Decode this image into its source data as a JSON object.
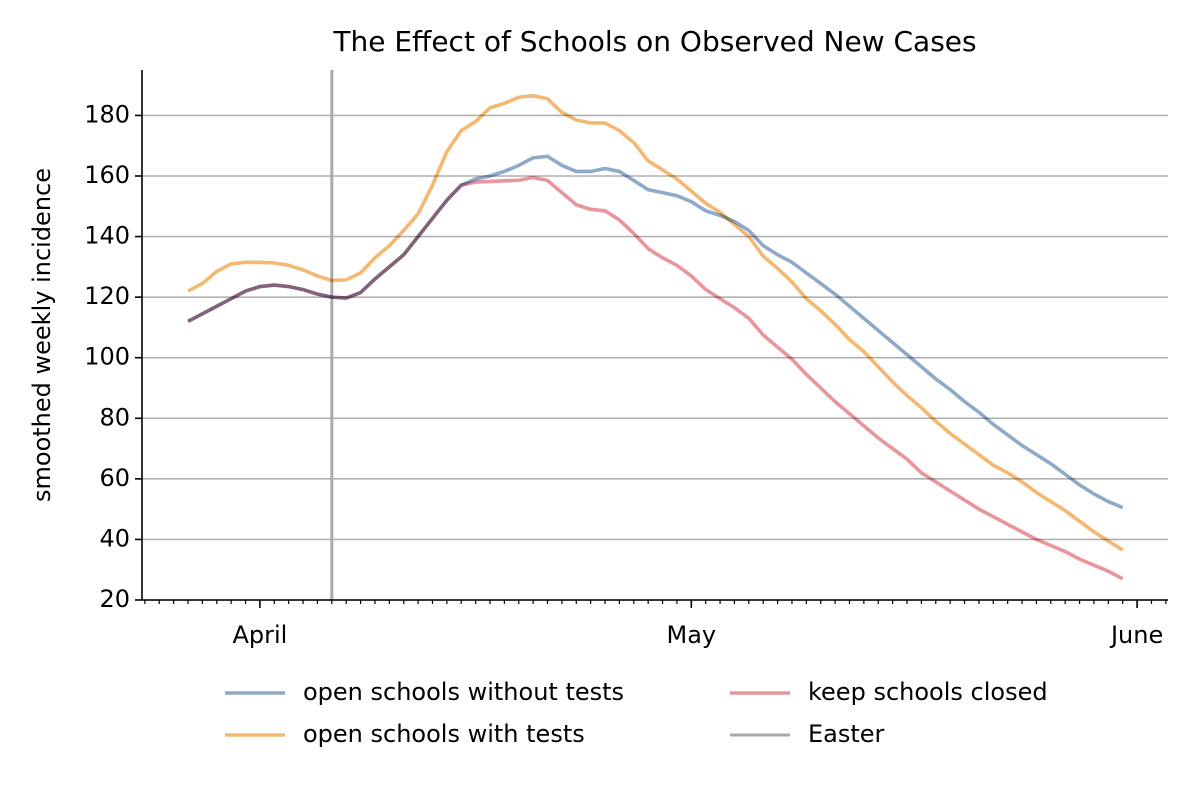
{
  "chart_data": {
    "type": "line",
    "title": "The Effect of Schools on Observed New Cases",
    "ylabel": "smoothed weekly incidence",
    "x": [
      -5,
      -4,
      -3,
      -2,
      -1,
      0,
      1,
      2,
      3,
      4,
      5,
      6,
      7,
      8,
      9,
      10,
      11,
      12,
      13,
      14,
      15,
      16,
      17,
      18,
      19,
      20,
      21,
      22,
      23,
      24,
      25,
      26,
      27,
      28,
      29,
      30,
      31,
      32,
      33,
      34,
      35,
      36,
      37,
      38,
      39,
      40,
      41,
      42,
      43,
      44,
      45,
      46,
      47,
      48,
      49,
      50,
      51,
      52,
      53,
      54,
      55,
      56,
      57,
      58,
      59,
      60
    ],
    "series": [
      {
        "name": "open schools without tests",
        "color": "#8fa9c9",
        "values": [
          112,
          114.5,
          117,
          119.5,
          122,
          123.5,
          124,
          123.5,
          122.5,
          121,
          120,
          119.7,
          121.5,
          126,
          130,
          134,
          140,
          146,
          152,
          157,
          159,
          160,
          161.5,
          163.5,
          166,
          166.5,
          163.5,
          161.5,
          161.5,
          162.5,
          161.5,
          158.5,
          155.5,
          154.5,
          153.5,
          151.5,
          148.5,
          147,
          145,
          142,
          137,
          134,
          131.5,
          128,
          124.5,
          121,
          117,
          113,
          109,
          105,
          101,
          97,
          93,
          89.5,
          85.5,
          82,
          78,
          74.5,
          71,
          68,
          65,
          61.5,
          58,
          55,
          52.5,
          50.5
        ]
      },
      {
        "name": "open schools with tests",
        "color": "#f5b872",
        "values": [
          122,
          124.5,
          128.5,
          131,
          131.5,
          131.5,
          131.3,
          130.5,
          129,
          127,
          125.5,
          125.7,
          128,
          133,
          137,
          142,
          147.5,
          157,
          168,
          175,
          178,
          182.5,
          184,
          186,
          186.5,
          185.5,
          181,
          178.5,
          177.5,
          177.5,
          175,
          171,
          165,
          162,
          159,
          155,
          151,
          148,
          144,
          140,
          133.5,
          129.5,
          125,
          119.5,
          115.5,
          111,
          106,
          102,
          97,
          92,
          87.5,
          83.5,
          79,
          75,
          71.5,
          68,
          64.5,
          62,
          59,
          55.5,
          52.5,
          49.5,
          46,
          42.5,
          39.5,
          36.5
        ]
      },
      {
        "name": "keep schools closed",
        "color": "#e8959b",
        "values": [
          112,
          114.5,
          117,
          119.5,
          122,
          123.5,
          124,
          123.5,
          122.5,
          121,
          120,
          119.7,
          121.5,
          126,
          130,
          134,
          140,
          146,
          152,
          157,
          158,
          158.2,
          158.4,
          158.6,
          159.5,
          158.5,
          154.5,
          150.5,
          149,
          148.5,
          145.5,
          141,
          136,
          133,
          130.5,
          127,
          122.5,
          119.5,
          116.5,
          113,
          107.5,
          103.5,
          99.5,
          94.5,
          90,
          85.5,
          81.5,
          77.5,
          73.5,
          70,
          66.5,
          62,
          59,
          56,
          53,
          50,
          47.5,
          45,
          42.5,
          40,
          38,
          36,
          33.5,
          31.5,
          29.5,
          27
        ]
      }
    ],
    "events": [
      {
        "name": "Easter",
        "x": 5,
        "color": "#aaaaaa"
      }
    ],
    "xlim": [
      -8.2,
      63.15
    ],
    "xticks": [
      {
        "value": 0,
        "label": "April"
      },
      {
        "value": 30,
        "label": "May"
      },
      {
        "value": 61,
        "label": "June"
      }
    ],
    "xminorticks": [
      -8,
      -7,
      -6,
      -5,
      -4,
      -3,
      -2,
      -1,
      1,
      2,
      3,
      4,
      5,
      6,
      7,
      8,
      9,
      10,
      11,
      12,
      13,
      14,
      15,
      16,
      17,
      18,
      19,
      20,
      21,
      22,
      23,
      24,
      25,
      26,
      27,
      28,
      29,
      31,
      32,
      33,
      34,
      35,
      36,
      37,
      38,
      39,
      40,
      41,
      42,
      43,
      44,
      45,
      46,
      47,
      48,
      49,
      50,
      51,
      52,
      53,
      54,
      55,
      56,
      57,
      58,
      59,
      60,
      62,
      63
    ],
    "ylim": [
      20,
      195
    ],
    "yticks": [
      20,
      40,
      60,
      80,
      100,
      120,
      140,
      160,
      180
    ],
    "grid": true,
    "legend": "bottom"
  }
}
